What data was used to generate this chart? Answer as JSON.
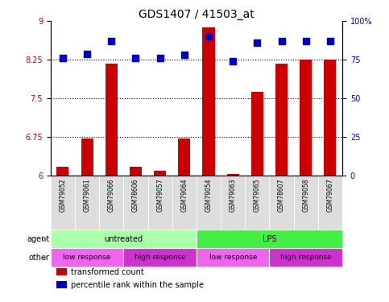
{
  "title": "GDS1407 / 41503_at",
  "samples": [
    "GSM79052",
    "GSM79061",
    "GSM79066",
    "GSM78606",
    "GSM79057",
    "GSM79064",
    "GSM79054",
    "GSM79063",
    "GSM79065",
    "GSM78607",
    "GSM79058",
    "GSM79067"
  ],
  "bar_values": [
    6.18,
    6.72,
    8.17,
    6.18,
    6.1,
    6.72,
    8.88,
    6.03,
    7.62,
    8.17,
    8.25,
    8.25
  ],
  "dot_values": [
    76,
    79,
    87,
    76,
    76,
    78,
    90,
    74,
    86,
    87,
    87,
    87
  ],
  "ylim_left": [
    6,
    9
  ],
  "ylim_right": [
    0,
    100
  ],
  "yticks_left": [
    6,
    6.75,
    7.5,
    8.25,
    9
  ],
  "yticks_right": [
    0,
    25,
    50,
    75,
    100
  ],
  "ytick_labels_left": [
    "6",
    "6.75",
    "7.5",
    "8.25",
    "9"
  ],
  "ytick_labels_right": [
    "0",
    "25",
    "50",
    "75",
    "100%"
  ],
  "hlines": [
    6.75,
    7.5,
    8.25
  ],
  "bar_color": "#cc0000",
  "dot_color": "#0000cc",
  "agent_labels": [
    {
      "text": "untreated",
      "start": 0,
      "end": 6,
      "color": "#aaffaa"
    },
    {
      "text": "LPS",
      "start": 6,
      "end": 12,
      "color": "#44ee44"
    }
  ],
  "other_labels": [
    {
      "text": "low response",
      "start": 0,
      "end": 3,
      "color": "#ee66ee"
    },
    {
      "text": "high response",
      "start": 3,
      "end": 6,
      "color": "#cc33cc"
    },
    {
      "text": "low response",
      "start": 6,
      "end": 9,
      "color": "#ee66ee"
    },
    {
      "text": "high response",
      "start": 9,
      "end": 12,
      "color": "#cc33cc"
    }
  ],
  "legend_items": [
    {
      "label": "transformed count",
      "color": "#cc0000"
    },
    {
      "label": "percentile rank within the sample",
      "color": "#0000cc"
    }
  ],
  "background_color": "#ffffff",
  "tick_label_color_left": "#cc0000",
  "tick_label_color_right": "#0000cc",
  "title_fontsize": 10,
  "bar_width": 0.5,
  "dot_size": 30,
  "xlim": [
    -0.5,
    11.5
  ]
}
